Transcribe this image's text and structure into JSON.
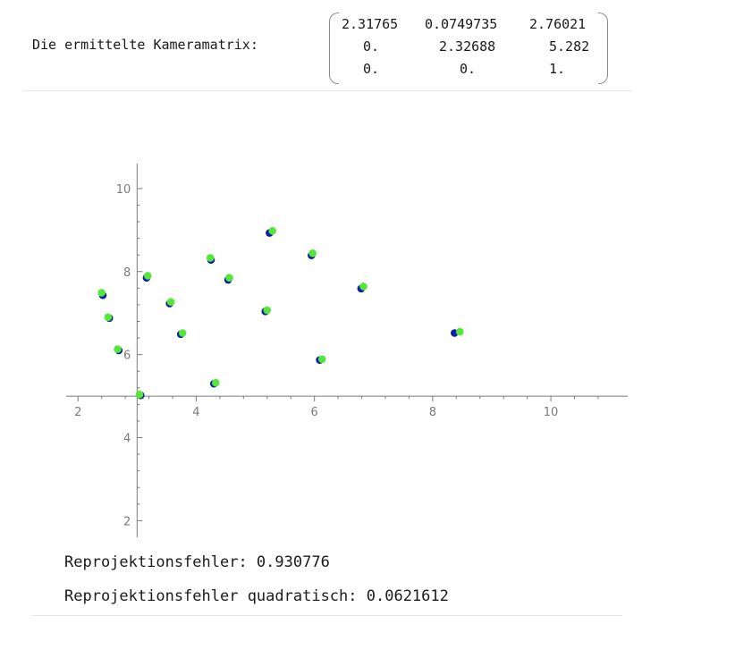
{
  "matrix": {
    "label": "Die ermittelte Kameramatrix:",
    "rows": [
      [
        "2.31765",
        "0.0749735",
        "2.76021"
      ],
      [
        "0.",
        "2.32688",
        "5.282"
      ],
      [
        "0.",
        "0.",
        "1."
      ]
    ]
  },
  "chart_data": {
    "type": "scatter",
    "title": "",
    "xlabel": "",
    "ylabel": "",
    "xlim": [
      1.8,
      11.3
    ],
    "ylim": [
      1.6,
      10.6
    ],
    "axis_origin": [
      3.0,
      5.0
    ],
    "x_major_ticks": [
      2,
      4,
      6,
      8,
      10
    ],
    "y_major_ticks": [
      2,
      4,
      6,
      8,
      10
    ],
    "grid": false,
    "legend": "none",
    "colors": {
      "series_a": "#0a1fa8",
      "series_b": "#55e63a",
      "axis": "#7a7a7a"
    },
    "series": [
      {
        "points": [
          [
            2.42,
            7.43
          ],
          [
            2.53,
            6.88
          ],
          [
            2.69,
            6.1
          ],
          [
            3.06,
            5.02
          ],
          [
            3.16,
            7.85
          ],
          [
            3.55,
            7.23
          ],
          [
            3.74,
            6.49
          ],
          [
            4.25,
            8.28
          ],
          [
            4.3,
            5.3
          ],
          [
            4.54,
            7.8
          ],
          [
            5.17,
            7.04
          ],
          [
            5.24,
            8.93
          ],
          [
            5.95,
            8.39
          ],
          [
            6.09,
            5.87
          ],
          [
            6.79,
            7.59
          ],
          [
            8.37,
            6.52
          ]
        ]
      },
      {
        "points": [
          [
            2.4,
            7.49
          ],
          [
            2.51,
            6.9
          ],
          [
            2.67,
            6.13
          ],
          [
            3.04,
            5.04
          ],
          [
            3.18,
            7.9
          ],
          [
            3.57,
            7.27
          ],
          [
            3.77,
            6.52
          ],
          [
            4.24,
            8.33
          ],
          [
            4.33,
            5.32
          ],
          [
            4.56,
            7.85
          ],
          [
            5.2,
            7.07
          ],
          [
            5.29,
            8.98
          ],
          [
            5.97,
            8.44
          ],
          [
            6.13,
            5.89
          ],
          [
            6.83,
            7.64
          ],
          [
            8.46,
            6.55
          ]
        ]
      }
    ]
  },
  "results": {
    "reproj_error": "Reprojektionsfehler: 0.930776",
    "reproj_error_sq": "Reprojektionsfehler quadratisch: 0.0621612"
  }
}
